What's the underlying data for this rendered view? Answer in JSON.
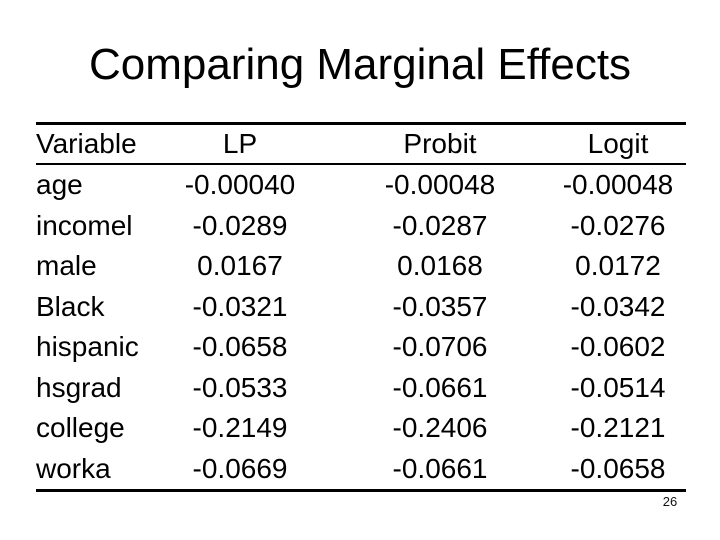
{
  "slide": {
    "title": "Comparing Marginal Effects",
    "page_number": "26"
  },
  "table": {
    "headers": [
      "Variable",
      "LP",
      "Probit",
      "Logit"
    ],
    "rows": [
      [
        "age",
        "-0.00040",
        "-0.00048",
        "-0.00048"
      ],
      [
        "incomel",
        "-0.0289",
        "-0.0287",
        "-0.0276"
      ],
      [
        "male",
        "0.0167",
        "0.0168",
        "0.0172"
      ],
      [
        "Black",
        "-0.0321",
        "-0.0357",
        "-0.0342"
      ],
      [
        "hispanic",
        "-0.0658",
        "-0.0706",
        "-0.0602"
      ],
      [
        "hsgrad",
        "-0.0533",
        "-0.0661",
        "-0.0514"
      ],
      [
        "college",
        "-0.2149",
        "-0.2406",
        "-0.2121"
      ],
      [
        "worka",
        "-0.0669",
        "-0.0661",
        "-0.0658"
      ]
    ]
  }
}
